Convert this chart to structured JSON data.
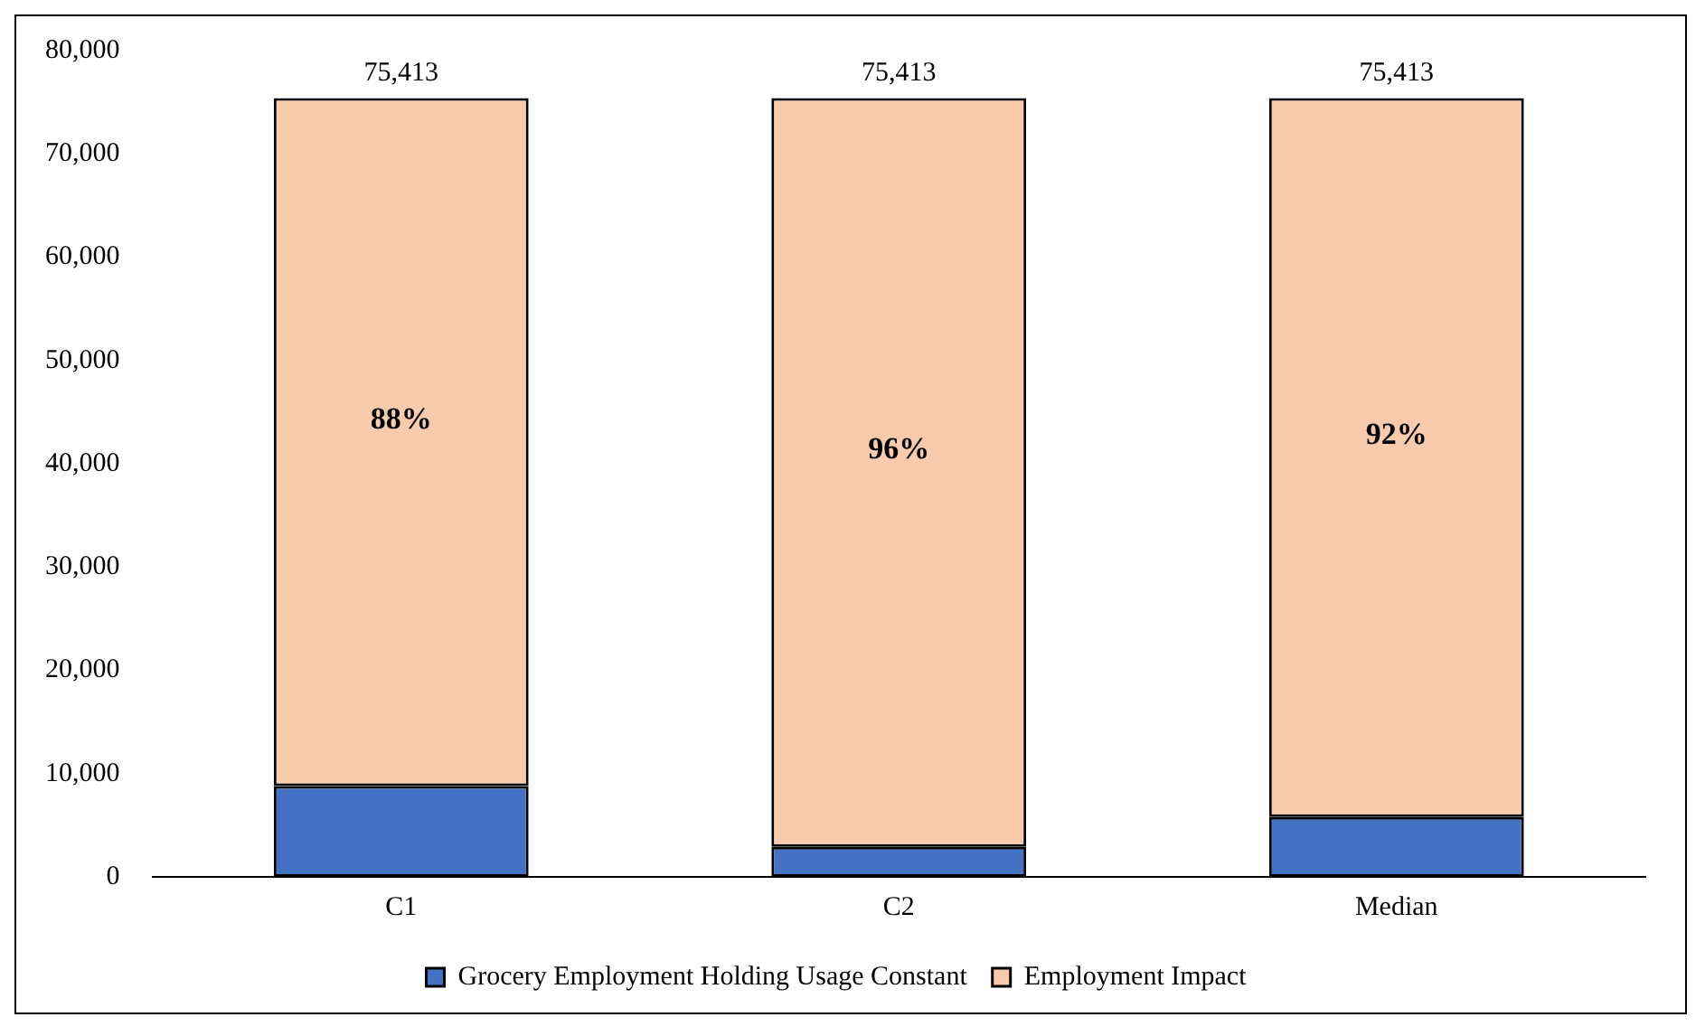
{
  "chart_data": {
    "type": "bar",
    "stacked": true,
    "categories": [
      "C1",
      "C2",
      "Median"
    ],
    "series": [
      {
        "name": "Grocery Employment Holding Usage Constant",
        "color": "#4472c4",
        "values": [
          8800,
          2900,
          5800
        ]
      },
      {
        "name": "Employment Impact",
        "color": "#f8cbad",
        "values": [
          66613,
          72513,
          69613
        ]
      }
    ],
    "totals": [
      "75,413",
      "75,413",
      "75,413"
    ],
    "annotations": [
      "88%",
      "96%",
      "92%"
    ],
    "ylim": [
      0,
      80000
    ],
    "yticks": [
      0,
      {
        "value": 10000,
        "label": "10,000"
      },
      {
        "value": 20000,
        "label": "20,000"
      },
      {
        "value": 30000,
        "label": "30,000"
      },
      {
        "value": 40000,
        "label": "40,000"
      },
      {
        "value": 50000,
        "label": "50,000"
      },
      {
        "value": 60000,
        "label": "60,000"
      },
      {
        "value": 70000,
        "label": "70,000"
      },
      {
        "value": 80000,
        "label": "80,000"
      }
    ],
    "grid": false,
    "legend": "bottom"
  }
}
